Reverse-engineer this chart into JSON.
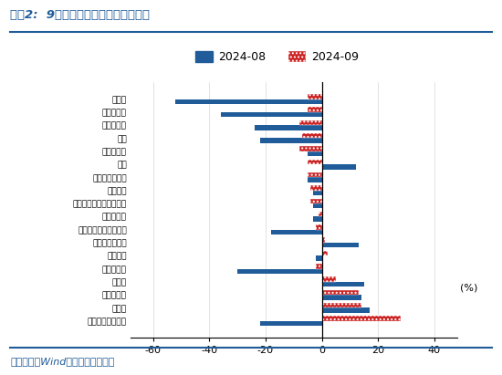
{
  "title": "图表2:  9月四大税种收入增速表现分化",
  "categories": [
    "印花税",
    "车辆购置税",
    "国内消费税",
    "契税",
    "国内增值税",
    "关税",
    "城市维护建设税",
    "税收收入",
    "进口环节增值税和消费税",
    "个人所得税",
    "土地和房地产相关税收",
    "城镇土地使用税",
    "其他税收",
    "土地增值税",
    "资源税",
    "耕地占用税",
    "房产税",
    "外贸企业出口退税"
  ],
  "values_2024_08": [
    -52,
    -36,
    -24,
    -22,
    -5,
    12,
    -5,
    -3,
    -3,
    -3,
    -18,
    13,
    -2,
    -30,
    15,
    14,
    17,
    -22
  ],
  "values_2024_09": [
    -5,
    -5,
    -8,
    -7,
    -8,
    -5,
    -5,
    -4,
    -4,
    -1,
    -2,
    1,
    2,
    -2,
    5,
    13,
    14,
    28
  ],
  "color_08": "#1F5C99",
  "color_09": "#CC2222",
  "xlim": [
    -68,
    48
  ],
  "xticks": [
    -60,
    -40,
    -20,
    0,
    20,
    40
  ],
  "footnote": "资料来源：Wind，国盛证券研究所",
  "background_color": "#FFFFFF",
  "title_color": "#1F5C99",
  "footnote_color": "#1F5C99",
  "line_color": "#1F5C99"
}
